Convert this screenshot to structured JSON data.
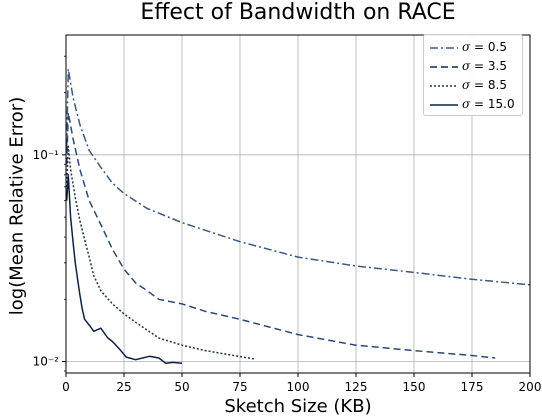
{
  "chart_data": {
    "type": "line",
    "title": "Effect of Bandwidth on RACE",
    "xlabel": "Sketch Size (KB)",
    "ylabel": "log(Mean Relative Error)",
    "xlim": [
      0,
      200
    ],
    "ylim": [
      0.0088,
      0.38
    ],
    "yscale": "log",
    "grid": true,
    "legend_position": "top-right",
    "x_ticks": [
      0,
      25,
      50,
      75,
      100,
      125,
      150,
      175,
      200
    ],
    "x_tick_labels": [
      "0",
      "25",
      "50",
      "75",
      "100",
      "125",
      "150",
      "175",
      "200"
    ],
    "y_ticks": [
      0.01,
      0.1
    ],
    "y_tick_labels": [
      "10⁻²",
      "10⁻¹"
    ],
    "series": [
      {
        "name": "σ = 0.5",
        "sigma": "0.5",
        "color": "#3d5a80",
        "dash": "8,3,2,3",
        "x": [
          0.3,
          1,
          3,
          6,
          10,
          15,
          20,
          25,
          35,
          50,
          75,
          100,
          125,
          150,
          175,
          200
        ],
        "y": [
          0.11,
          0.26,
          0.19,
          0.14,
          0.105,
          0.087,
          0.073,
          0.065,
          0.055,
          0.047,
          0.038,
          0.032,
          0.029,
          0.027,
          0.025,
          0.0235
        ]
      },
      {
        "name": "σ = 3.5",
        "sigma": "3.5",
        "color": "#2c4a73",
        "dash": "7,4",
        "x": [
          0.3,
          1,
          3,
          6,
          10,
          15,
          20,
          25,
          30,
          35,
          40,
          50,
          60,
          75,
          100,
          125,
          150,
          175,
          185
        ],
        "y": [
          0.09,
          0.16,
          0.12,
          0.085,
          0.06,
          0.046,
          0.035,
          0.028,
          0.024,
          0.022,
          0.02,
          0.019,
          0.0175,
          0.016,
          0.0135,
          0.012,
          0.0113,
          0.0107,
          0.0104
        ]
      },
      {
        "name": "σ = 8.5",
        "sigma": "8.5",
        "color": "#1e3250",
        "dash": "2,2",
        "x": [
          0.3,
          1,
          2,
          4,
          6,
          8,
          10,
          12,
          15,
          20,
          25,
          30,
          40,
          50,
          60,
          70,
          81
        ],
        "y": [
          0.07,
          0.11,
          0.085,
          0.062,
          0.048,
          0.039,
          0.032,
          0.026,
          0.022,
          0.019,
          0.017,
          0.0155,
          0.013,
          0.012,
          0.0113,
          0.0108,
          0.0103
        ]
      },
      {
        "name": "σ = 15.0",
        "sigma": "15.0",
        "color": "#0f2244",
        "dash": "",
        "x": [
          0.3,
          1,
          2,
          3,
          4,
          5,
          6,
          7,
          8,
          10,
          12,
          15,
          18,
          20,
          23,
          26,
          30,
          33,
          36,
          40,
          43,
          46,
          50
        ],
        "y": [
          0.06,
          0.08,
          0.05,
          0.038,
          0.03,
          0.025,
          0.021,
          0.018,
          0.016,
          0.015,
          0.014,
          0.0145,
          0.013,
          0.0125,
          0.0115,
          0.0105,
          0.0102,
          0.0104,
          0.0106,
          0.0104,
          0.0098,
          0.0099,
          0.0098
        ]
      }
    ]
  }
}
